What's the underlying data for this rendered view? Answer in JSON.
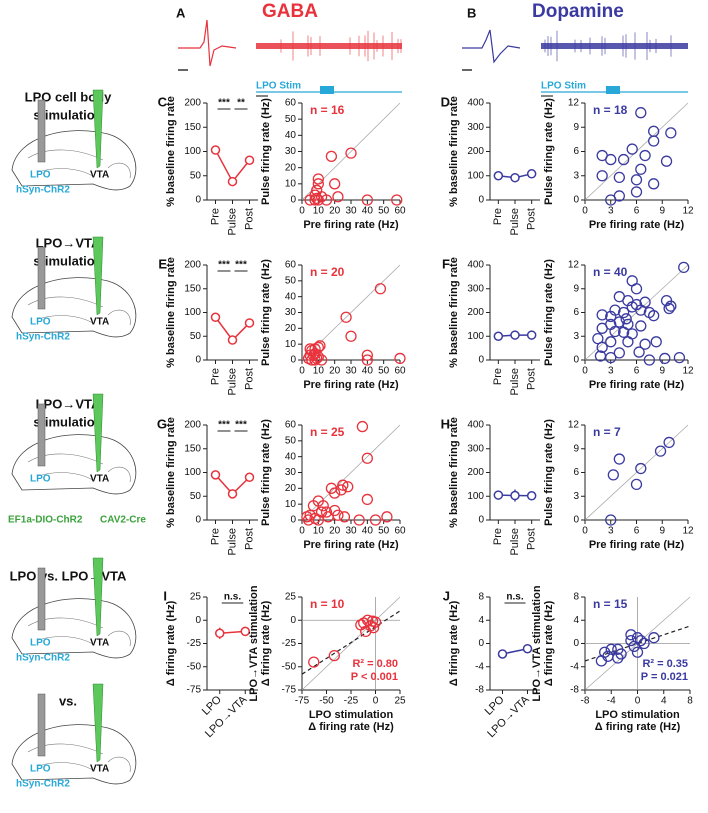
{
  "header": {
    "panels": [
      "A",
      "B"
    ],
    "titles": [
      "GABA",
      "Dopamine"
    ],
    "stim_label": "LPO Stim"
  },
  "left_panels": [
    {
      "title": [
        "LPO cell body",
        "stimulation"
      ],
      "labels": [
        "LPO",
        "VTA",
        "hSyn-ChR2"
      ]
    },
    {
      "title": [
        "LPO→VTA",
        "stimulation"
      ],
      "labels": [
        "LPO",
        "VTA",
        "hSyn-ChR2"
      ]
    },
    {
      "title": [
        "LPO→VTA",
        "stimulation"
      ],
      "labels": [
        "LPO",
        "VTA",
        "EF1a-DIO-ChR2",
        "CAV2-Cre"
      ]
    },
    {
      "title": [
        "LPO vs. LPO→VTA"
      ],
      "labels": [
        "LPO",
        "VTA",
        "hSyn-ChR2"
      ]
    },
    {
      "title": [
        "vs."
      ],
      "labels": [
        "LPO",
        "VTA",
        "hSyn-ChR2"
      ]
    }
  ],
  "chart_data": [
    {
      "type": "line",
      "panel": "C",
      "color": "#e8323c",
      "categories": [
        "Pre",
        "Pulse",
        "Post"
      ],
      "values": [
        103,
        38,
        82
      ],
      "errors": [
        8,
        8,
        9
      ],
      "ylim": [
        0,
        200
      ],
      "yticks": [
        0,
        50,
        100,
        150,
        200
      ],
      "ylabel": [
        "% baseline firing rate"
      ],
      "significance": [
        "***",
        "**"
      ],
      "xtick_rotation": -90
    },
    {
      "type": "scatter",
      "color": "#e8323c",
      "x": [
        10,
        10,
        9,
        8,
        12,
        18,
        20,
        30,
        22,
        10,
        5,
        8,
        9,
        40,
        58,
        15
      ],
      "y": [
        13,
        10,
        6,
        3,
        2,
        27,
        10,
        29,
        2,
        0,
        0,
        0,
        1,
        0,
        0,
        0
      ],
      "xlim": [
        0,
        60
      ],
      "xticks": [
        0,
        10,
        20,
        30,
        40,
        50,
        60
      ],
      "ylim": [
        0,
        60
      ],
      "yticks": [
        0,
        10,
        20,
        30,
        40,
        50,
        60
      ],
      "xlabel": [
        "Pre firing rate (Hz)"
      ],
      "ylabel": [
        "Pulse firing rate (Hz)"
      ],
      "annotation": "n = 16"
    },
    {
      "type": "line",
      "panel": "D",
      "color": "#3a3aa0",
      "categories": [
        "Pre",
        "Pulse",
        "Post"
      ],
      "values": [
        100,
        92,
        108
      ],
      "errors": [
        6,
        10,
        9
      ],
      "ylim": [
        0,
        400
      ],
      "yticks": [
        0,
        100,
        200,
        300,
        400
      ],
      "ylabel": [
        "% baseline firing rate"
      ],
      "xtick_rotation": -90
    },
    {
      "type": "scatter",
      "color": "#3a3aa0",
      "x": [
        6.5,
        10,
        8,
        8,
        5.5,
        2,
        3,
        4.5,
        7,
        9.5,
        2,
        4,
        6.5,
        8,
        6,
        4,
        3,
        6
      ],
      "y": [
        10.8,
        8.3,
        8.5,
        7.3,
        6.3,
        5.5,
        5,
        5,
        5.5,
        4.8,
        3,
        2.8,
        3.8,
        2,
        1,
        0.5,
        0,
        2.5
      ],
      "xlim": [
        0,
        12
      ],
      "xticks": [
        0,
        3,
        6,
        9,
        12
      ],
      "ylim": [
        0,
        12
      ],
      "yticks": [
        0,
        3,
        6,
        9,
        12
      ],
      "xlabel": [
        "Pre firing rate (Hz)"
      ],
      "ylabel": [
        "Pulse firing rate (Hz)"
      ],
      "annotation": "n = 18"
    },
    {
      "type": "line",
      "panel": "E",
      "color": "#e8323c",
      "categories": [
        "Pre",
        "Pulse",
        "Post"
      ],
      "values": [
        90,
        42,
        78
      ],
      "errors": [
        7,
        8,
        8
      ],
      "ylim": [
        0,
        200
      ],
      "yticks": [
        0,
        50,
        100,
        150,
        200
      ],
      "ylabel": [
        "% baseline firing rate"
      ],
      "significance": [
        "***",
        "***"
      ],
      "xtick_rotation": -90
    },
    {
      "type": "scatter",
      "color": "#e8323c",
      "x": [
        48,
        27,
        30,
        10,
        8,
        6,
        8,
        5,
        10,
        6,
        4,
        8,
        12,
        40,
        40,
        60,
        5,
        9,
        7,
        11
      ],
      "y": [
        45,
        27,
        15,
        8,
        7,
        6,
        4,
        3,
        2,
        0,
        1,
        0,
        0,
        3,
        0,
        1,
        7,
        1,
        3,
        9
      ],
      "xlim": [
        0,
        60
      ],
      "xticks": [
        0,
        10,
        20,
        30,
        40,
        50,
        60
      ],
      "ylim": [
        0,
        60
      ],
      "yticks": [
        0,
        10,
        20,
        30,
        40,
        50,
        60
      ],
      "xlabel": [
        "Pre firing rate (Hz)"
      ],
      "ylabel": [
        "Pulse firing rate (Hz)"
      ],
      "annotation": "n = 20"
    },
    {
      "type": "line",
      "panel": "F",
      "color": "#3a3aa0",
      "categories": [
        "Pre",
        "Pulse",
        "Post"
      ],
      "values": [
        100,
        105,
        105
      ],
      "errors": [
        5,
        8,
        7
      ],
      "ylim": [
        0,
        400
      ],
      "yticks": [
        0,
        100,
        200,
        300,
        400
      ],
      "ylabel": [
        "% baseline firing rate"
      ],
      "xtick_rotation": -90
    },
    {
      "type": "scatter",
      "color": "#3a3aa0",
      "x": [
        11.5,
        5.5,
        6,
        4,
        5,
        7,
        9.5,
        9.8,
        6,
        5.5,
        3.5,
        4.5,
        6.5,
        7.5,
        2,
        3,
        8,
        10,
        3,
        4,
        5,
        6.5,
        2,
        3.5,
        4.5,
        5.5,
        1.5,
        3,
        5,
        7,
        8.3,
        2,
        1.8,
        3,
        4,
        6.3,
        7.5,
        9.3,
        11,
        4.8
      ],
      "y": [
        11.7,
        10,
        9,
        8,
        7.5,
        7.3,
        7.5,
        6.5,
        7,
        6.7,
        6.3,
        6,
        6.3,
        6,
        5.7,
        5.5,
        5.6,
        6.8,
        4.5,
        4.8,
        4.5,
        4.3,
        4,
        3.6,
        3.5,
        3.3,
        2.7,
        2.3,
        2.3,
        2,
        2.3,
        1.6,
        0.5,
        0.3,
        0.9,
        1,
        0,
        0.2,
        0.3,
        5.2
      ],
      "xlim": [
        0,
        12
      ],
      "xticks": [
        0,
        3,
        6,
        9,
        12
      ],
      "ylim": [
        0,
        12
      ],
      "yticks": [
        0,
        3,
        6,
        9,
        12
      ],
      "xlabel": [
        "Pre firing rate (Hz)"
      ],
      "ylabel": [
        "Pulse firing rate (Hz)"
      ],
      "annotation": "n = 40"
    },
    {
      "type": "line",
      "panel": "G",
      "color": "#e8323c",
      "categories": [
        "Pre",
        "Pulse",
        "Post"
      ],
      "values": [
        95,
        55,
        90
      ],
      "errors": [
        6,
        8,
        7
      ],
      "ylim": [
        0,
        200
      ],
      "yticks": [
        0,
        50,
        100,
        150,
        200
      ],
      "ylabel": [
        "% baseline firing rate"
      ],
      "significance": [
        "***",
        "***"
      ],
      "xtick_rotation": -90
    },
    {
      "type": "scatter",
      "color": "#e8323c",
      "x": [
        37,
        40,
        40,
        25,
        24,
        18,
        20,
        10,
        7,
        12,
        15,
        20,
        22,
        5,
        8,
        4,
        10,
        16,
        26,
        35,
        45,
        52,
        3,
        13,
        28
      ],
      "y": [
        59,
        39,
        13,
        22,
        19,
        20,
        17,
        12,
        9,
        5,
        5,
        6,
        3,
        3,
        1,
        0,
        0,
        2,
        2,
        0,
        0,
        2,
        2,
        9,
        21
      ],
      "xlim": [
        0,
        60
      ],
      "xticks": [
        0,
        10,
        20,
        30,
        40,
        50,
        60
      ],
      "ylim": [
        0,
        60
      ],
      "yticks": [
        0,
        10,
        20,
        30,
        40,
        50,
        60
      ],
      "xlabel": [
        "Pre firing rate (Hz)"
      ],
      "ylabel": [
        "Pulse firing rate (Hz)"
      ],
      "annotation": "n = 25"
    },
    {
      "type": "line",
      "panel": "H",
      "color": "#3a3aa0",
      "categories": [
        "Pre",
        "Pulse",
        "Post"
      ],
      "values": [
        105,
        103,
        102
      ],
      "errors": [
        8,
        25,
        6
      ],
      "ylim": [
        0,
        400
      ],
      "yticks": [
        0,
        100,
        200,
        300,
        400
      ],
      "ylabel": [
        "% baseline firing rate"
      ],
      "xtick_rotation": -90
    },
    {
      "type": "scatter",
      "color": "#3a3aa0",
      "x": [
        3,
        3.3,
        4,
        6.5,
        6,
        8.8,
        9.8
      ],
      "y": [
        0,
        5.7,
        7.7,
        6.5,
        4.5,
        8.7,
        9.8
      ],
      "xlim": [
        0,
        12
      ],
      "xticks": [
        0,
        3,
        6,
        9,
        12
      ],
      "ylim": [
        0,
        12
      ],
      "yticks": [
        0,
        3,
        6,
        9,
        12
      ],
      "xlabel": [
        "Pre firing rate (Hz)"
      ],
      "ylabel": [
        "Pulse firing rate (Hz)"
      ],
      "annotation": "n = 7"
    },
    {
      "type": "line",
      "panel": "I",
      "color": "#e8323c",
      "categories": [
        "LPO",
        "LPO→VTA"
      ],
      "values": [
        -14,
        -12
      ],
      "errors": [
        6,
        5
      ],
      "ylim": [
        -75,
        25
      ],
      "yticks": [
        -75,
        -50,
        -25,
        0,
        25
      ],
      "ylabel": [
        "Δ firing rate (Hz)"
      ],
      "significance": [
        "n.s."
      ],
      "xtick_rotation": -45
    },
    {
      "type": "scatter",
      "color": "#e8323c",
      "x": [
        -63,
        -42,
        -12,
        -10,
        -5,
        -3,
        0,
        -8,
        -15,
        -2
      ],
      "y": [
        -45,
        -38,
        -3,
        -12,
        -6,
        -1,
        -2,
        0,
        -5,
        -8
      ],
      "xlim": [
        -75,
        25
      ],
      "xticks": [
        -75,
        -50,
        -25,
        0,
        25
      ],
      "ylim": [
        -75,
        25
      ],
      "yticks": [
        -75,
        -50,
        -25,
        0,
        25
      ],
      "xlabel": [
        "LPO stimulation",
        "Δ firing rate (Hz)"
      ],
      "ylabel": [
        "LPO→VTA stimulation",
        "Δ firing rate (Hz)"
      ],
      "annotation": "n = 10",
      "stats": [
        "R² = 0.80",
        "P < 0.001"
      ],
      "trend_x": [
        -75,
        25
      ],
      "trend_y": [
        -58,
        10
      ]
    },
    {
      "type": "line",
      "panel": "J",
      "color": "#3a3aa0",
      "categories": [
        "LPO",
        "LPO→VTA"
      ],
      "values": [
        -1.8,
        -0.9
      ],
      "errors": [
        0.7,
        0.5
      ],
      "ylim": [
        -8,
        8
      ],
      "yticks": [
        -8,
        -4,
        0,
        4,
        8
      ],
      "ylabel": [
        "Δ firing rate (Hz)"
      ],
      "significance": [
        "n.s."
      ],
      "xtick_rotation": -45
    },
    {
      "type": "scatter",
      "color": "#3a3aa0",
      "x": [
        -4,
        -5,
        -3,
        -2.5,
        -4.5,
        -3,
        -5.5,
        -1,
        -0.5,
        0,
        0.5,
        1,
        2.5,
        0,
        -1
      ],
      "y": [
        -1,
        -1.5,
        -1,
        -1.8,
        -2.2,
        -2.5,
        -3,
        0.5,
        -0.5,
        1,
        0.5,
        0,
        1,
        -1.5,
        1.5
      ],
      "xlim": [
        -8,
        8
      ],
      "xticks": [
        -8,
        -4,
        0,
        4,
        8
      ],
      "ylim": [
        -8,
        8
      ],
      "yticks": [
        -8,
        -4,
        0,
        4,
        8
      ],
      "xlabel": [
        "LPO stimulation",
        "Δ firing rate (Hz)"
      ],
      "ylabel": [
        "LPO→VTA stimulation",
        "Δ firing rate (Hz)"
      ],
      "annotation": "n = 15",
      "stats": [
        "R² = 0.35",
        "P = 0.021"
      ],
      "trend_x": [
        -8,
        8
      ],
      "trend_y": [
        -3,
        3
      ]
    }
  ]
}
